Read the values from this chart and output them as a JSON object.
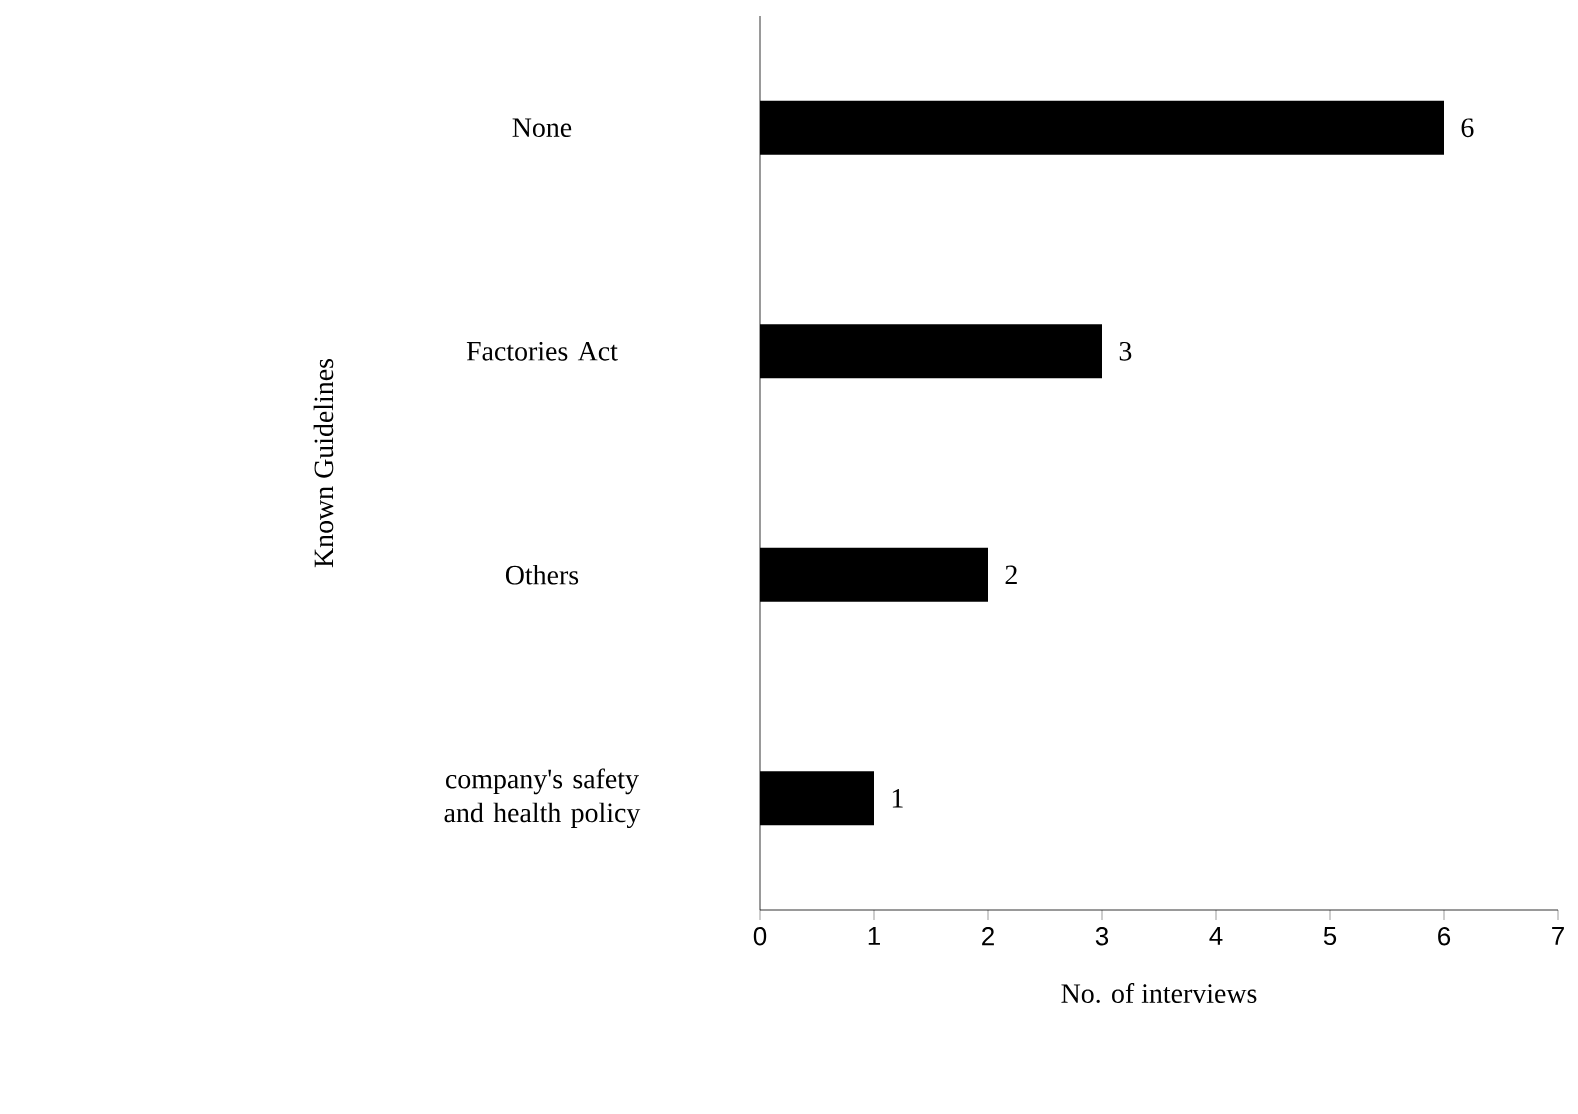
{
  "chart_data": {
    "type": "bar",
    "orientation": "horizontal",
    "categories": [
      "None",
      "Factories Act",
      "Others",
      "company's safety and health policy"
    ],
    "values": [
      6,
      3,
      2,
      1
    ],
    "color": "#000000",
    "xlim": [
      0,
      7
    ],
    "xticks": [
      0,
      1,
      2,
      3,
      4,
      5,
      6,
      7
    ],
    "xlabel": "No. of interviews",
    "ylabel": "Known  Guidelines",
    "data_labels": true,
    "grid": false
  }
}
